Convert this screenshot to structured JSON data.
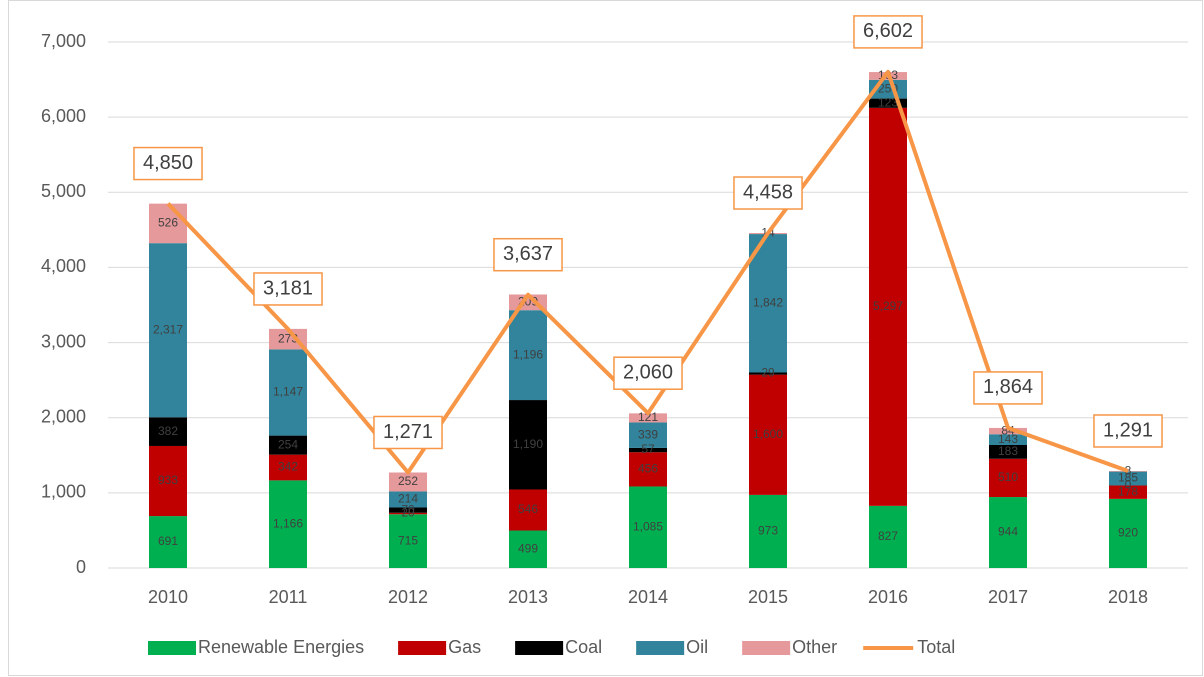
{
  "chart_data": {
    "type": "bar",
    "stacked": true,
    "categories": [
      "2010",
      "2011",
      "2012",
      "2013",
      "2014",
      "2015",
      "2016",
      "2017",
      "2018"
    ],
    "series": [
      {
        "name": "Renewable Energies",
        "color": "#00b050",
        "values": [
          691,
          1166,
          715,
          499,
          1085,
          973,
          827,
          944,
          920
        ],
        "value_labels": [
          "691",
          "1,166",
          "715",
          "499",
          "1,085",
          "973",
          "827",
          "944",
          "920"
        ]
      },
      {
        "name": "Gas",
        "color": "#c00000",
        "values": [
          933,
          342,
          20,
          546,
          456,
          1600,
          5297,
          510,
          178
        ],
        "value_labels": [
          "933",
          "342",
          "20",
          "546",
          "456",
          "1,600",
          "5,297",
          "510",
          "178"
        ]
      },
      {
        "name": "Coal",
        "color": "#000000",
        "values": [
          382,
          254,
          70,
          1190,
          57,
          29,
          123,
          183,
          0
        ],
        "value_labels": [
          "382",
          "254",
          "70",
          "1,190",
          "57",
          "29",
          "123",
          "183",
          "0"
        ]
      },
      {
        "name": "Oil",
        "color": "#31849b",
        "values": [
          2317,
          1147,
          214,
          1196,
          339,
          1842,
          250,
          143,
          185
        ],
        "value_labels": [
          "2,317",
          "1,147",
          "214",
          "1,196",
          "339",
          "1,842",
          "250",
          "143",
          "185"
        ]
      },
      {
        "name": "Other",
        "color": "#e6999a",
        "values": [
          526,
          273,
          252,
          209,
          121,
          14,
          103,
          84,
          8
        ],
        "value_labels": [
          "526",
          "273",
          "252",
          "209",
          "121",
          "14",
          "103",
          "84",
          "8"
        ]
      },
      {
        "name": "Total",
        "type": "line",
        "color": "#f79646",
        "values": [
          4850,
          3181,
          1271,
          3637,
          2060,
          4458,
          6602,
          1864,
          1291
        ],
        "value_labels": [
          "4,850",
          "3,181",
          "1,271",
          "3,637",
          "2,060",
          "4,458",
          "6,602",
          "1,864",
          "1,291"
        ]
      }
    ],
    "ylim": [
      0,
      7000
    ],
    "yticks": [
      0,
      {
        "value": 1000,
        "label": "1,000"
      },
      {
        "value": 2000,
        "label": "2,000"
      },
      {
        "value": 3000,
        "label": "3,000"
      },
      {
        "value": 4000,
        "label": "4,000"
      },
      {
        "value": 5000,
        "label": "5,000"
      },
      {
        "value": 6000,
        "label": "6,000"
      },
      {
        "value": 7000,
        "label": "7,000"
      }
    ],
    "grid": true,
    "legend": "bottom"
  }
}
